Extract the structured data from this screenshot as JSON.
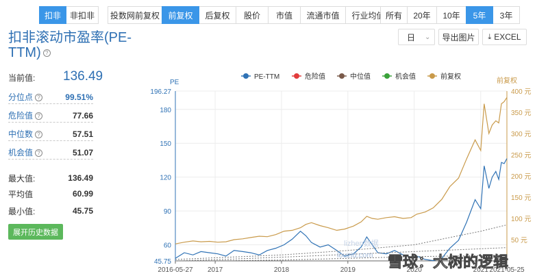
{
  "toolbar": {
    "mode_group": [
      {
        "label": "扣非",
        "active": true
      },
      {
        "label": "非扣非",
        "active": false
      }
    ],
    "price_group": [
      {
        "label": "投数网前复权",
        "active": false
      },
      {
        "label": "前复权",
        "active": true
      },
      {
        "label": "后复权",
        "active": false
      },
      {
        "label": "股价",
        "active": false
      },
      {
        "label": "市值",
        "active": false
      },
      {
        "label": "流通市值",
        "active": false
      },
      {
        "label": "行业均值",
        "active": false
      }
    ],
    "range_group": [
      {
        "label": "所有",
        "active": false
      },
      {
        "label": "20年",
        "active": false
      },
      {
        "label": "10年",
        "active": false
      },
      {
        "label": "5年",
        "active": true
      },
      {
        "label": "3年",
        "active": false
      }
    ]
  },
  "title": "扣非滚动市盈率(PE-TTM)",
  "controls": {
    "period_select": "日",
    "export_image": "导出图片",
    "export_excel": "EXCEL"
  },
  "stats": {
    "current_label": "当前值:",
    "current_value": "136.49",
    "percentile_label": "分位点",
    "percentile_value": "99.51%",
    "danger_label": "危险值",
    "danger_value": "77.66",
    "median_label": "中位数",
    "median_value": "57.51",
    "opportunity_label": "机会值",
    "opportunity_value": "51.07",
    "max_label": "最大值:",
    "max_value": "136.49",
    "avg_label": "平均值",
    "avg_value": "60.99",
    "min_label": "最小值:",
    "min_value": "45.75",
    "history_button": "展开历史数据"
  },
  "colors": {
    "accent": "#3a96e8",
    "pe": "#2f72b5",
    "danger": "#e23c3c",
    "median": "#7a5a4a",
    "opportunity": "#3aa23a",
    "price": "#c99a4a"
  },
  "chart_data": {
    "type": "line",
    "left_axis_label": "PE",
    "right_axis_label": "前复权",
    "legend": [
      {
        "name": "PE-TTM",
        "color": "#2f72b5"
      },
      {
        "name": "危险值",
        "color": "#e23c3c"
      },
      {
        "name": "中位值",
        "color": "#7a5a4a"
      },
      {
        "name": "机会值",
        "color": "#3aa23a"
      },
      {
        "name": "前复权",
        "color": "#c99a4a"
      }
    ],
    "legend_position": "top",
    "grid": true,
    "ylim_left": [
      45.75,
      196.27
    ],
    "yticks_left": [
      "196.27",
      "180",
      "150",
      "120",
      "90",
      "60",
      "45.75"
    ],
    "yticks_left_values": [
      196.27,
      180,
      150,
      120,
      90,
      60,
      45.75
    ],
    "ylim_right": [
      0,
      400
    ],
    "yticks_right": [
      "50 元",
      "100 元",
      "150 元",
      "200 元",
      "250 元",
      "300 元",
      "350 元",
      "400 元"
    ],
    "yticks_right_values": [
      50,
      100,
      150,
      200,
      250,
      300,
      350,
      400
    ],
    "xlim": [
      "2016-05-27",
      "2021-05-25"
    ],
    "xticks": [
      "2016-05-27",
      "2017",
      "2018",
      "2019",
      "2020",
      "2021",
      "2021-05-25"
    ],
    "xticks_dates": [
      "2016-05-27",
      "2017-01-01",
      "2018-01-01",
      "2019-01-01",
      "2020-01-01",
      "2021-01-01",
      "2021-05-25"
    ],
    "series": [
      {
        "name": "PE-TTM",
        "axis": "left",
        "dates": [
          "2016-05-27",
          "2016-07-15",
          "2016-09-01",
          "2016-10-15",
          "2016-12-01",
          "2017-01-15",
          "2017-03-01",
          "2017-04-15",
          "2017-06-01",
          "2017-07-15",
          "2017-09-01",
          "2017-10-15",
          "2017-12-01",
          "2018-01-15",
          "2018-03-01",
          "2018-04-15",
          "2018-05-15",
          "2018-06-15",
          "2018-08-01",
          "2018-09-15",
          "2018-11-01",
          "2018-12-15",
          "2019-02-01",
          "2019-03-15",
          "2019-04-15",
          "2019-05-15",
          "2019-06-15",
          "2019-08-01",
          "2019-09-15",
          "2019-11-01",
          "2019-12-15",
          "2020-01-15",
          "2020-03-01",
          "2020-04-15",
          "2020-06-01",
          "2020-07-15",
          "2020-09-01",
          "2020-10-15",
          "2020-12-01",
          "2021-01-01",
          "2021-01-20",
          "2021-02-15",
          "2021-03-05",
          "2021-03-25",
          "2021-04-10",
          "2021-04-25",
          "2021-05-10",
          "2021-05-25"
        ],
        "values": [
          48,
          53,
          51,
          54,
          53,
          52,
          50,
          55,
          54,
          53,
          51,
          55,
          57,
          60,
          65,
          72,
          68,
          62,
          58,
          60,
          55,
          50,
          52,
          58,
          67,
          60,
          53,
          52,
          55,
          51,
          49,
          50,
          47,
          46,
          48,
          57,
          64,
          80,
          100,
          92,
          130,
          110,
          120,
          125,
          118,
          133,
          132,
          136.49
        ]
      },
      {
        "name": "前复权",
        "axis": "right",
        "dates": [
          "2016-05-27",
          "2016-07-15",
          "2016-09-01",
          "2016-10-15",
          "2016-12-01",
          "2017-01-15",
          "2017-03-01",
          "2017-04-15",
          "2017-06-01",
          "2017-07-15",
          "2017-09-01",
          "2017-10-15",
          "2017-12-01",
          "2018-01-15",
          "2018-03-01",
          "2018-04-15",
          "2018-05-15",
          "2018-06-15",
          "2018-08-01",
          "2018-09-15",
          "2018-11-01",
          "2018-12-15",
          "2019-02-01",
          "2019-03-15",
          "2019-04-15",
          "2019-05-15",
          "2019-06-15",
          "2019-08-01",
          "2019-09-15",
          "2019-11-01",
          "2019-12-15",
          "2020-01-15",
          "2020-03-01",
          "2020-04-15",
          "2020-06-01",
          "2020-07-15",
          "2020-09-01",
          "2020-10-15",
          "2020-12-01",
          "2021-01-01",
          "2021-01-20",
          "2021-02-15",
          "2021-03-05",
          "2021-03-25",
          "2021-04-10",
          "2021-04-25",
          "2021-05-10",
          "2021-05-25"
        ],
        "values": [
          40,
          44,
          47,
          45,
          46,
          44,
          45,
          50,
          52,
          55,
          58,
          57,
          62,
          70,
          72,
          78,
          86,
          90,
          83,
          78,
          72,
          75,
          82,
          92,
          105,
          100,
          98,
          102,
          104,
          100,
          102,
          110,
          115,
          125,
          145,
          175,
          195,
          240,
          285,
          260,
          370,
          300,
          320,
          330,
          325,
          370,
          375,
          385
        ]
      },
      {
        "name": "危险值",
        "axis": "left",
        "dates": [
          "2016-05-27",
          "2017-01-01",
          "2018-01-01",
          "2019-01-01",
          "2020-01-01",
          "2020-07-01",
          "2021-01-01",
          "2021-05-25"
        ],
        "values": [
          47,
          48.5,
          51,
          55,
          60,
          66,
          72,
          77.66
        ]
      },
      {
        "name": "中位值",
        "axis": "left",
        "dates": [
          "2016-05-27",
          "2017-01-01",
          "2018-01-01",
          "2019-01-01",
          "2020-01-01",
          "2021-01-01",
          "2021-05-25"
        ],
        "values": [
          45.75,
          46.8,
          49,
          51.5,
          54,
          56.5,
          57.51
        ]
      },
      {
        "name": "机会值",
        "axis": "left",
        "dates": [
          "2016-05-27",
          "2017-01-01",
          "2018-01-01",
          "2019-01-01",
          "2020-01-01",
          "2021-01-01",
          "2021-05-25"
        ],
        "values": [
          45.75,
          45.8,
          46.5,
          48,
          49.5,
          50.5,
          51.07
        ]
      }
    ]
  },
  "watermarks": [
    "lizhen数据",
    "louzid.com",
    "雪球：大树的逻辑"
  ]
}
